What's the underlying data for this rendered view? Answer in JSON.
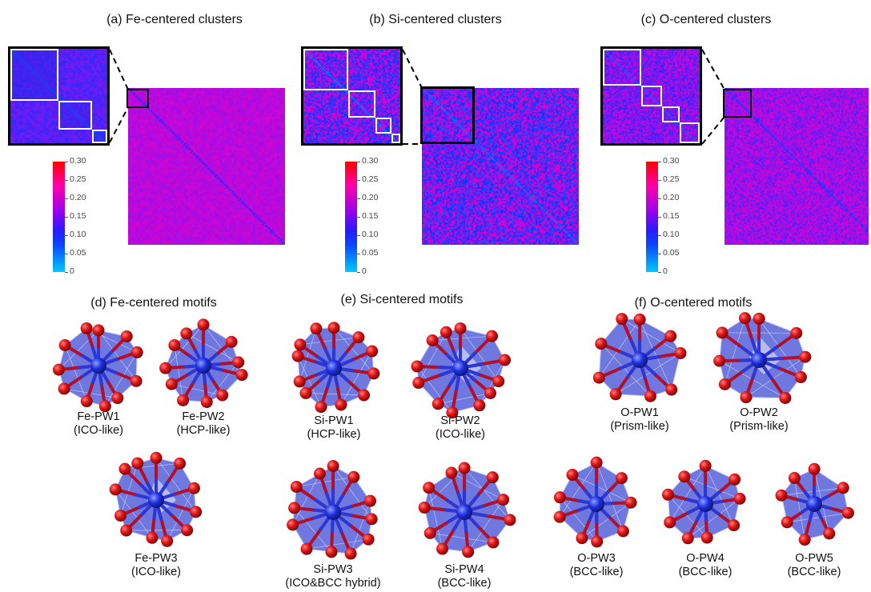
{
  "panels": {
    "a": {
      "title": "(a) Fe-centered clusters"
    },
    "b": {
      "title": "(b) Si-centered clusters"
    },
    "c": {
      "title": "(c) O-centered clusters"
    },
    "d": {
      "title": "(d) Fe-centered motifs"
    },
    "e": {
      "title": "(e) Si-centered motifs"
    },
    "f": {
      "title": "(f) O-centered motifs"
    }
  },
  "colorbar": {
    "ticks": [
      "0.30",
      "0.25",
      "0.20",
      "0.15",
      "0.10",
      "0.05",
      "0"
    ]
  },
  "colors": {
    "polyhedron": "#5560d8",
    "atom_red": "#e01818",
    "atom_blue": "#2030e0"
  },
  "motifs": {
    "fe": [
      {
        "name": "Fe-PW1",
        "type": "(ICO-like)"
      },
      {
        "name": "Fe-PW2",
        "type": "(HCP-like)"
      },
      {
        "name": "Fe-PW3",
        "type": "(ICO-like)"
      }
    ],
    "si": [
      {
        "name": "Si-PW1",
        "type": "(HCP-like)"
      },
      {
        "name": "Si-PW2",
        "type": "(ICO-like)"
      },
      {
        "name": "Si-PW3",
        "type": "(ICO&BCC hybrid)"
      },
      {
        "name": "Si-PW4",
        "type": "(BCC-like)"
      }
    ],
    "o": [
      {
        "name": "O-PW1",
        "type": "(Prism-like)"
      },
      {
        "name": "O-PW2",
        "type": "(Prism-like)"
      },
      {
        "name": "O-PW3",
        "type": "(BCC-like)"
      },
      {
        "name": "O-PW4",
        "type": "(BCC-like)"
      },
      {
        "name": "O-PW5",
        "type": "(BCC-like)"
      }
    ]
  }
}
